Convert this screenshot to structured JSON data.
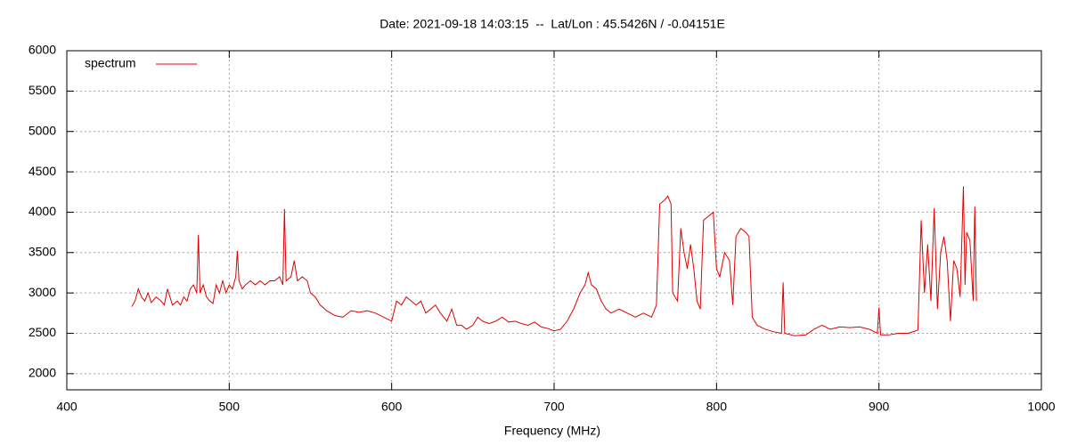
{
  "chart_data": {
    "type": "line",
    "title": "Date: 2021-09-18 14:03:15  --  Lat/Lon : 45.5426N / -0.04151E",
    "x_label": "Frequency (MHz)",
    "xlim": [
      400,
      1000
    ],
    "xticks": [
      400,
      500,
      600,
      700,
      800,
      900,
      1000
    ],
    "ylim": [
      1800,
      6000
    ],
    "yticks": [
      2000,
      2500,
      3000,
      3500,
      4000,
      4500,
      5000,
      5500,
      6000
    ],
    "grid": true,
    "legend": "top-left",
    "x": [
      440,
      442,
      444,
      446,
      448,
      450,
      452,
      455,
      458,
      460,
      462,
      465,
      468,
      470,
      472,
      474,
      476,
      478,
      480,
      481,
      482,
      484,
      486,
      488,
      490,
      492,
      494,
      496,
      498,
      500,
      502,
      504,
      505,
      506,
      508,
      510,
      513,
      516,
      519,
      522,
      525,
      528,
      531,
      533,
      534,
      535,
      538,
      540,
      542,
      545,
      548,
      550,
      553,
      556,
      560,
      565,
      570,
      575,
      580,
      585,
      590,
      595,
      600,
      603,
      606,
      609,
      612,
      615,
      618,
      621,
      624,
      627,
      630,
      634,
      637,
      640,
      643,
      646,
      650,
      653,
      656,
      660,
      664,
      668,
      672,
      676,
      680,
      684,
      688,
      692,
      696,
      700,
      704,
      708,
      712,
      716,
      719,
      721,
      723,
      726,
      729,
      732,
      735,
      740,
      745,
      750,
      755,
      760,
      763,
      765,
      768,
      770,
      772,
      773,
      776,
      778,
      780,
      782,
      784,
      786,
      788,
      790,
      792,
      795,
      798,
      800,
      802,
      805,
      808,
      810,
      812,
      815,
      818,
      820,
      822,
      825,
      830,
      835,
      840,
      841,
      842,
      848,
      855,
      860,
      865,
      870,
      876,
      882,
      888,
      894,
      899,
      900,
      901,
      906,
      912,
      918,
      924,
      926,
      928,
      930,
      932,
      934,
      936,
      938,
      940,
      942,
      944,
      946,
      948,
      950,
      952,
      953,
      954,
      956,
      958,
      959,
      960
    ],
    "series": [
      {
        "name": "spectrum",
        "color": "#e00000",
        "values": [
          2830,
          2900,
          3050,
          2950,
          2900,
          3000,
          2880,
          2950,
          2900,
          2850,
          3050,
          2850,
          2900,
          2850,
          2950,
          2900,
          3050,
          3100,
          3000,
          3720,
          3000,
          3100,
          2950,
          2900,
          2870,
          3100,
          3000,
          3150,
          3000,
          3100,
          3050,
          3200,
          3520,
          3150,
          3050,
          3100,
          3150,
          3100,
          3150,
          3100,
          3150,
          3150,
          3200,
          3100,
          4040,
          3150,
          3200,
          3400,
          3150,
          3200,
          3150,
          3000,
          2950,
          2850,
          2780,
          2720,
          2700,
          2780,
          2760,
          2780,
          2750,
          2700,
          2650,
          2900,
          2850,
          2950,
          2900,
          2850,
          2900,
          2750,
          2800,
          2850,
          2750,
          2650,
          2800,
          2600,
          2600,
          2550,
          2600,
          2700,
          2650,
          2620,
          2650,
          2700,
          2640,
          2650,
          2620,
          2600,
          2640,
          2580,
          2560,
          2530,
          2550,
          2650,
          2800,
          3000,
          3100,
          3250,
          3100,
          3050,
          2900,
          2800,
          2750,
          2800,
          2750,
          2700,
          2750,
          2700,
          2850,
          4100,
          4150,
          4200,
          4100,
          3000,
          2900,
          3800,
          3500,
          3300,
          3600,
          3300,
          2900,
          2800,
          3900,
          3950,
          4000,
          3300,
          3200,
          3500,
          3400,
          2850,
          3700,
          3800,
          3750,
          3700,
          2700,
          2600,
          2550,
          2520,
          2500,
          3130,
          2500,
          2470,
          2480,
          2550,
          2600,
          2550,
          2580,
          2570,
          2580,
          2550,
          2500,
          2820,
          2480,
          2480,
          2500,
          2500,
          2540,
          3900,
          3000,
          3600,
          2900,
          4050,
          2800,
          3500,
          3700,
          3400,
          2650,
          3400,
          3300,
          2950,
          4320,
          3100,
          3750,
          3650,
          2900,
          4070,
          2900
        ]
      }
    ]
  }
}
